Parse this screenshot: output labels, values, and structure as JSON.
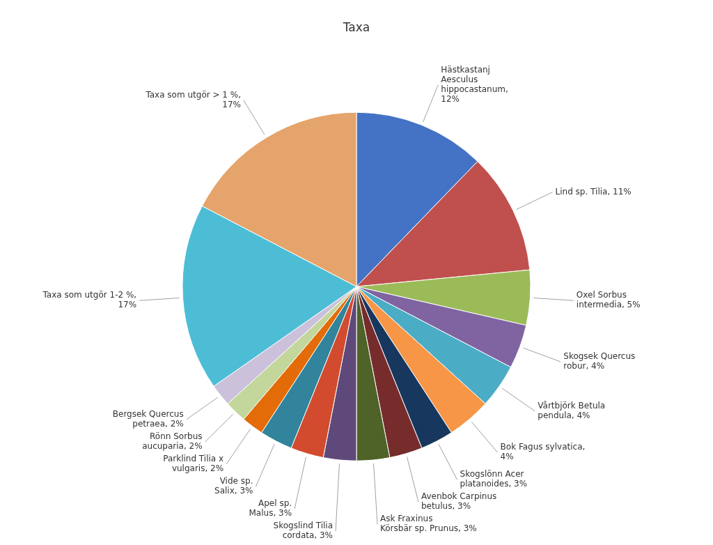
{
  "chart_data": {
    "type": "pie",
    "title": "Taxa",
    "categories": [
      "Hästkastanj\nAesculus\nhippocastanum,\n12%",
      "Lind sp. Tilia, 11%",
      "Oxel Sorbus\nintermedia, 5%",
      "Skogsek Quercus\nrobur, 4%",
      "Vårtbjörk Betula\npendula, 4%",
      "Bok Fagus sylvatica,\n4%",
      "Skogslönn Acer\nplatanoides, 3%",
      "Avenbok Carpinus\nbetulus, 3%",
      "Ask Fraxinus\nKörsbär sp. Prunus, 3%",
      "Skogslind Tilia\ncordata, 3%",
      "Apel sp.\nMalus, 3%",
      "Vide sp.\nSalix, 3%",
      "Parklind Tilia x\nvulgaris, 2%",
      "Rönn Sorbus\naucuparia, 2%",
      "Bergsek Quercus\npetraea, 2%",
      "Taxa som utgör 1-2 %,\n17%",
      "Taxa som utgör > 1 %,\n17%"
    ],
    "values": [
      12,
      11,
      5,
      4,
      4,
      4,
      3,
      3,
      3,
      3,
      3,
      3,
      2,
      2,
      2,
      17,
      17
    ],
    "colors": [
      "#4472C4",
      "#C0504D",
      "#9BBB59",
      "#8064A2",
      "#4BACC6",
      "#F79646",
      "#17375E",
      "#772C2C",
      "#4F6228",
      "#5F497A",
      "#D24B2E",
      "#31849B",
      "#E36C09",
      "#C3D69B",
      "#CCC1DA",
      "#4DBDD6",
      "#E5A46B"
    ]
  }
}
